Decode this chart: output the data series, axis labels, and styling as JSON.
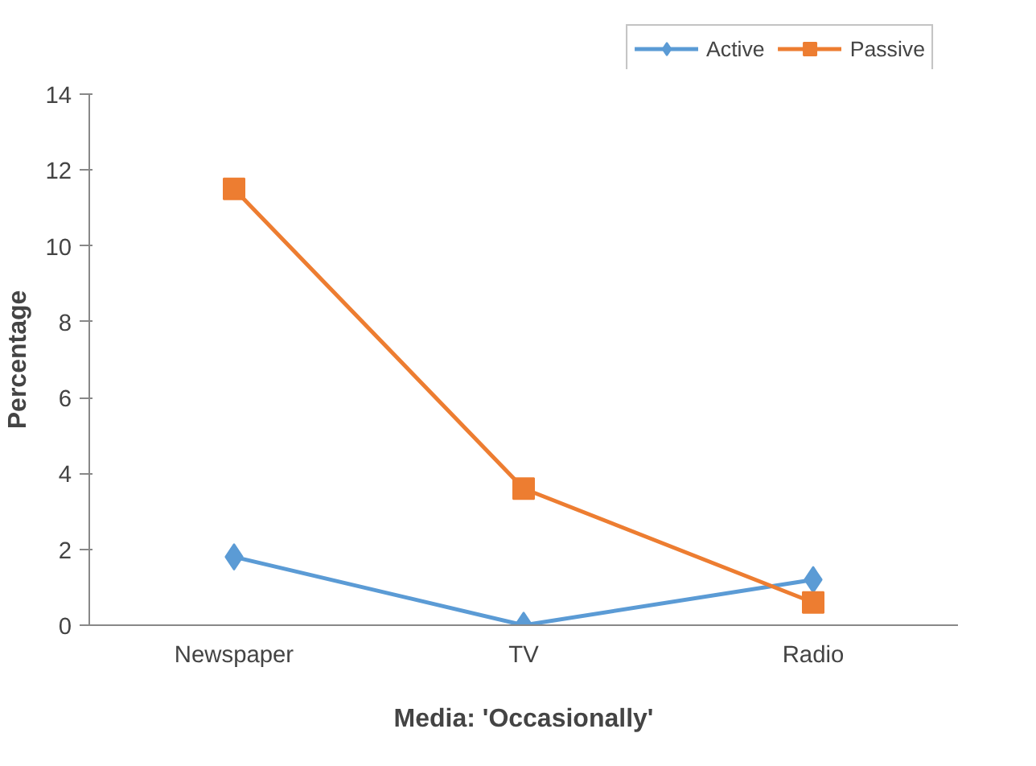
{
  "chart_data": {
    "type": "line",
    "xlabel": "Media: 'Occasionally'",
    "ylabel": "Percentage",
    "categories": [
      "Newspaper",
      "TV",
      "Radio"
    ],
    "series": [
      {
        "name": "Active",
        "color": "#5b9bd5",
        "marker": "diamond",
        "values": [
          1.8,
          0,
          1.2
        ]
      },
      {
        "name": "Passive",
        "color": "#ed7d31",
        "marker": "square",
        "values": [
          11.5,
          3.6,
          0.6
        ]
      }
    ],
    "ylim": [
      0,
      14
    ],
    "yticks": [
      0,
      2,
      4,
      6,
      8,
      10,
      12,
      14
    ],
    "grid": false,
    "legend": "top right",
    "line_style": "solid"
  }
}
